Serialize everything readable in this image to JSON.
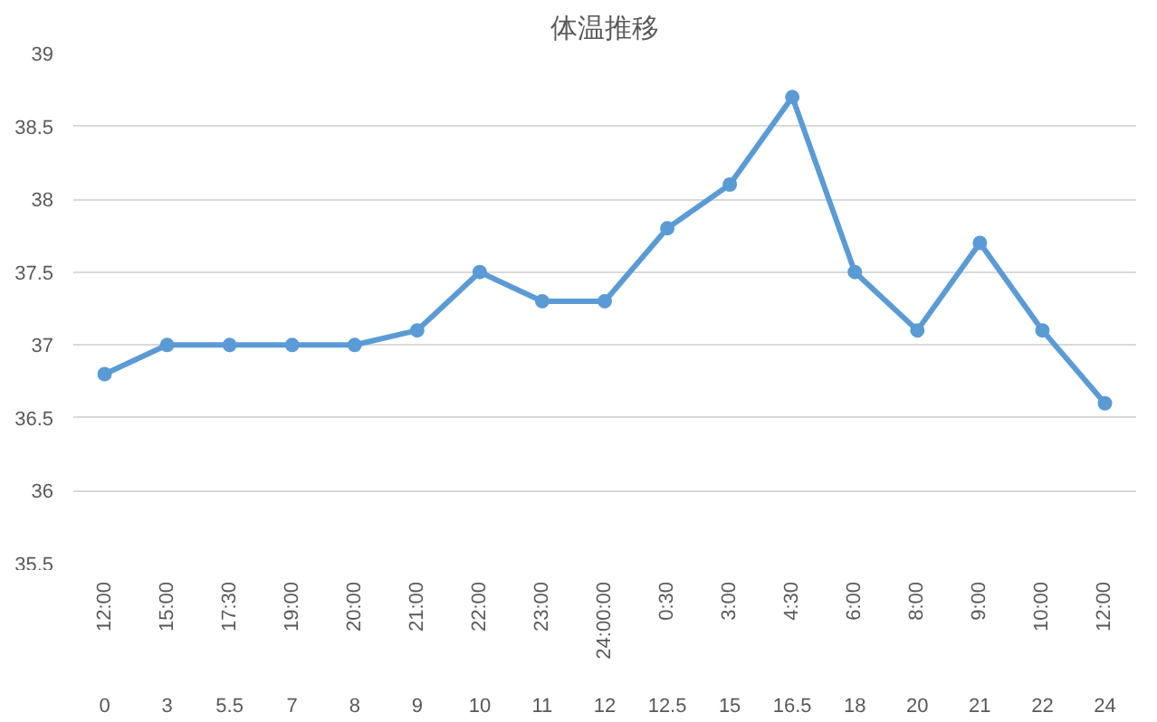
{
  "chart_data": {
    "type": "line",
    "title": "体温推移",
    "categories": [
      "12:00\n0",
      "15:00\n3",
      "17:30\n5.5",
      "19:00\n7",
      "20:00\n8",
      "21:00\n9",
      "22:00\n10",
      "23:00\n11",
      "24:00:00\n12",
      "0:30\n12.5",
      "3:00\n15",
      "4:30\n16.5",
      "6:00\n18",
      "8:00\n20",
      "9:00\n21",
      "10:00\n22",
      "12:00\n24"
    ],
    "series": [
      {
        "color": "#5b9bd5",
        "values": [
          36.8,
          37.0,
          37.0,
          37.0,
          37.0,
          37.1,
          37.5,
          37.3,
          37.3,
          37.8,
          38.1,
          38.7,
          37.5,
          37.1,
          37.7,
          37.1,
          36.6
        ]
      }
    ],
    "ylim": [
      35.5,
      39
    ],
    "yticks": [
      35.5,
      36,
      36.5,
      37,
      37.5,
      38,
      38.5,
      39
    ],
    "grid": "y",
    "marker": "circle",
    "line_style": "solid"
  }
}
